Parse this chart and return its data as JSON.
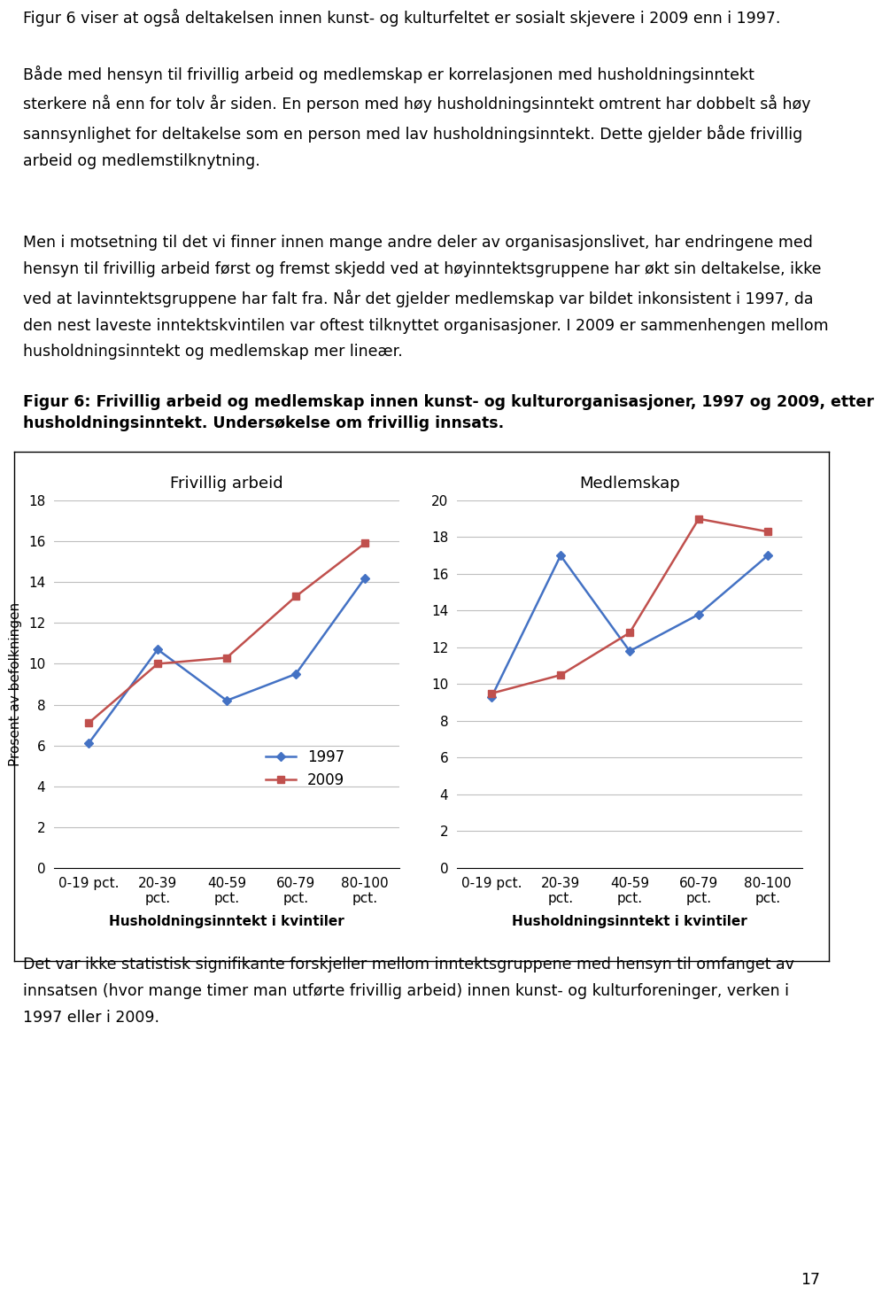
{
  "para1": "Figur 6 viser at også deltakelsen innen kunst- og kulturfeltet er sosialt skjevere i 2009 enn i 1997.\n\nBåde med hensyn til frivillig arbeid og medlemskap er korrelasjonen med husholdningsinntekt\nsterkere nå enn for tolv år siden. En person med høy husholdningsinntekt omtrent har dobbelt så høy\nsannsynlighet for deltakelse som en person med lav husholdningsinntekt. Dette gjelder både frivillig\narbeid og medlemstilknytning.",
  "para2": "Men i motsetning til det vi finner innen mange andre deler av organisasjonslivet, har endringene med\nhensyn til frivillig arbeid først og fremst skjedd ved at høyinntektsgruppene har økt sin deltakelse, ikke\nved at lavinntektsgruppene har falt fra. Når det gjelder medlemskap var bildet inkonsistent i 1997, da\nden nest laveste inntektskvintilen var oftest tilknyttet organisasjoner. I 2009 er sammenhengen mellom\nhusholdningsinntekt og medlemskap mer lineær.",
  "figure_caption_bold": "Figur 6: Frivillig arbeid og medlemskap innen kunst- og kulturorganisasjoner, 1997 og 2009, etter\nhusholdningsinntekt. Undersøkelse om frivillig innsats.",
  "bottom_para": "Det var ikke statistisk signifikante forskjeller mellom inntektsgruppene med hensyn til omfanget av\ninnsatsen (hvor mange timer man utførte frivillig arbeid) innen kunst- og kulturforeninger, verken i\n1997 eller i 2009.",
  "page_number": "17",
  "left_chart": {
    "title": "Frivillig arbeid",
    "ylabel": "Prosent av befolkningen",
    "xlabel": "Husholdningsinntekt i kvintiler",
    "categories": [
      "0-19 pct.",
      "20-39\npct.",
      "40-59\npct.",
      "60-79\npct.",
      "80-100\npct."
    ],
    "series_1997": [
      6.1,
      10.7,
      8.2,
      9.5,
      14.2
    ],
    "series_2009": [
      7.1,
      10.0,
      10.3,
      13.3,
      15.9
    ],
    "ylim": [
      0,
      18
    ],
    "yticks": [
      0,
      2,
      4,
      6,
      8,
      10,
      12,
      14,
      16,
      18
    ],
    "color_1997": "#4472C4",
    "color_2009": "#C0504D"
  },
  "right_chart": {
    "title": "Medlemskap",
    "ylabel": "",
    "xlabel": "Husholdningsinntekt i kvintiler",
    "categories": [
      "0-19 pct.",
      "20-39\npct.",
      "40-59\npct.",
      "60-79\npct.",
      "80-100\npct."
    ],
    "series_1997": [
      9.3,
      17.0,
      11.8,
      13.8,
      17.0
    ],
    "series_2009": [
      9.5,
      10.5,
      12.8,
      19.0,
      18.3
    ],
    "ylim": [
      0,
      20
    ],
    "yticks": [
      0,
      2,
      4,
      6,
      8,
      10,
      12,
      14,
      16,
      18,
      20
    ],
    "color_1997": "#4472C4",
    "color_2009": "#C0504D"
  },
  "background_color": "#FFFFFF",
  "grid_color": "#BEBEBE",
  "text_color": "#000000",
  "body_fontsize": 12.5,
  "caption_fontsize": 12.5,
  "chart_title_fontsize": 13,
  "axis_label_fontsize": 11,
  "tick_fontsize": 11,
  "legend_fontsize": 12
}
